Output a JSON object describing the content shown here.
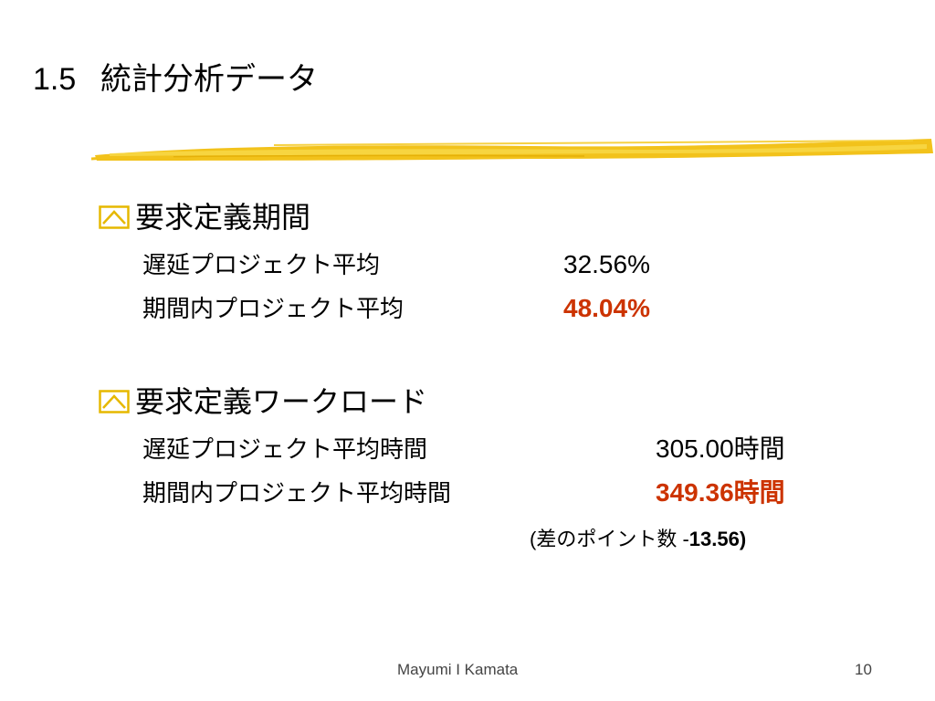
{
  "slide": {
    "section_number": "1.5",
    "title": "統計分析データ"
  },
  "sections": [
    {
      "heading": "要求定義期間",
      "rows": [
        {
          "label": "遅延プロジェクト平均",
          "value": "32.56%",
          "highlight": false
        },
        {
          "label": "期間内プロジェクト平均",
          "value": "48.04%",
          "highlight": true
        }
      ]
    },
    {
      "heading": "要求定義ワークロード",
      "rows": [
        {
          "label": "遅延プロジェクト平均時間",
          "value": "305.00時間",
          "highlight": false
        },
        {
          "label": "期間内プロジェクト平均時間",
          "value": "349.36時間",
          "highlight": true
        }
      ],
      "note": {
        "prefix": "(差のポイント数 -",
        "value": "13.56",
        "suffix": ")"
      }
    }
  ],
  "footer": {
    "author": "Mayumi I Kamata",
    "page_number": "10"
  },
  "colors": {
    "highlight": "#cc3300",
    "brush": "#f2c21b",
    "bullet": "#e6b800"
  },
  "icons": {
    "bullet": "checkbox-chevron-icon"
  }
}
